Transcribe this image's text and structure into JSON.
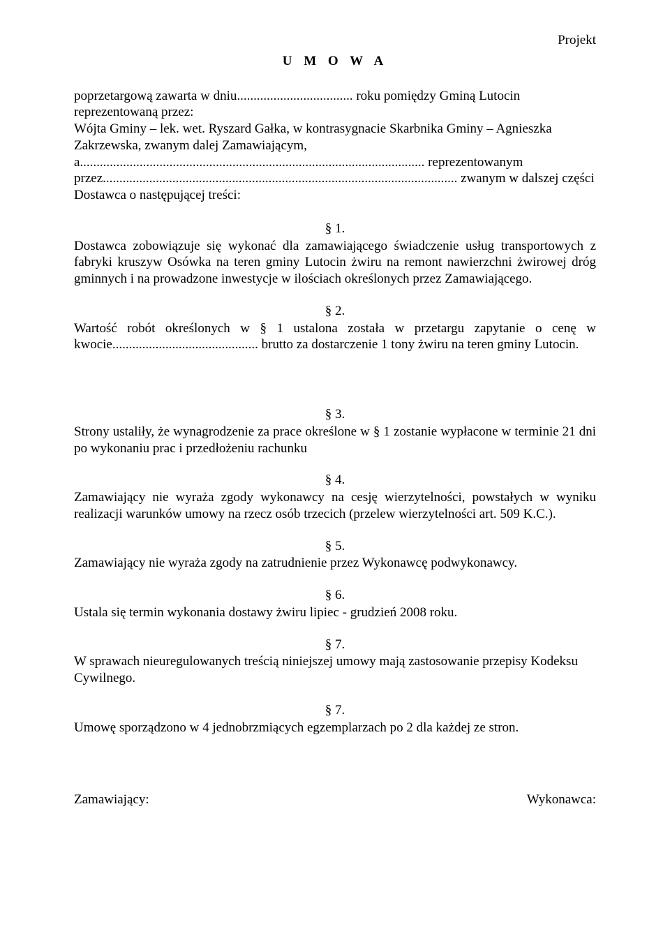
{
  "header": {
    "project_label": "Projekt",
    "title": "U M O W A"
  },
  "intro": {
    "text": "poprzetargową zawarta w dniu................................... roku pomiędzy Gminą Lutocin reprezentowaną przez:\nWójta Gminy – lek. wet. Ryszard Gałka, w kontrasygnacie Skarbnika Gminy – Agnieszka Zakrzewska, zwanym dalej Zamawiającym, a........................................................................................................ reprezentowanym przez........................................................................................................... zwanym w dalszej części Dostawca o następującej treści:"
  },
  "sections": [
    {
      "mark": "§ 1.",
      "body": "Dostawca zobowiązuje się wykonać dla zamawiającego świadczenie usług transportowych z fabryki kruszyw Osówka na teren gminy Lutocin żwiru na remont nawierzchni żwirowej dróg gminnych i na prowadzone inwestycje w ilościach określonych przez Zamawiającego.",
      "align": "justify"
    },
    {
      "mark": "§ 2.",
      "body": "Wartość robót określonych w § 1 ustalona została w przetargu zapytanie o cenę w kwocie............................................ brutto za dostarczenie 1 tony żwiru na teren gminy Lutocin.",
      "align": "justify",
      "gap_after": true
    },
    {
      "mark": "§ 3.",
      "body": "Strony ustaliły, że wynagrodzenie za prace określone w § 1 zostanie wypłacone w terminie 21 dni po wykonaniu prac i przedłożeniu rachunku",
      "align": "justify"
    },
    {
      "mark": "§ 4.",
      "body": "Zamawiający nie wyraża zgody wykonawcy na cesję wierzytelności, powstałych w wyniku realizacji warunków umowy na rzecz osób trzecich (przelew wierzytelności art. 509 K.C.).",
      "align": "justify"
    },
    {
      "mark": "§ 5.",
      "body": "Zamawiający nie wyraża zgody na zatrudnienie przez Wykonawcę podwykonawcy.",
      "align": "left"
    },
    {
      "mark": "§ 6.",
      "body": "Ustala się termin wykonania dostawy żwiru lipiec - grudzień 2008 roku.",
      "align": "left"
    },
    {
      "mark": "§ 7.",
      "body": "W sprawach nieuregulowanych treścią niniejszej umowy mają zastosowanie przepisy Kodeksu Cywilnego.",
      "align": "left"
    },
    {
      "mark": "§ 7.",
      "body": "Umowę sporządzono w 4 jednobrzmiących egzemplarzach po 2 dla każdej ze stron.",
      "align": "left"
    }
  ],
  "signatures": {
    "left": "Zamawiający:",
    "right": "Wykonawca:"
  }
}
